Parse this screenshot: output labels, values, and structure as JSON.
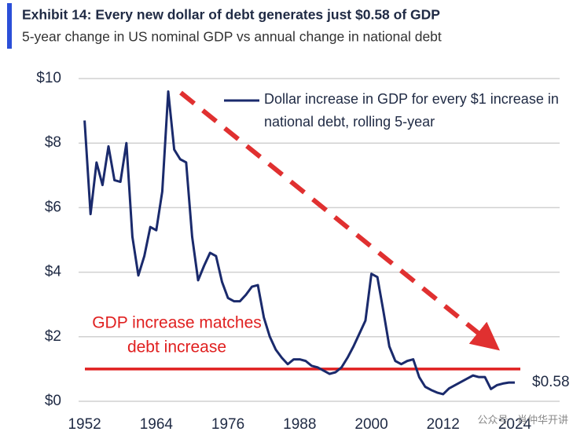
{
  "chart_data": {
    "type": "line",
    "title": "Exhibit 14: Every new dollar of debt generates just $0.58 of GDP",
    "subtitle": "5-year change in US nominal GDP vs annual change in national debt",
    "x": [
      1952,
      1953,
      1954,
      1955,
      1956,
      1957,
      1958,
      1959,
      1960,
      1961,
      1962,
      1963,
      1964,
      1965,
      1966,
      1967,
      1968,
      1969,
      1970,
      1971,
      1972,
      1973,
      1974,
      1975,
      1976,
      1977,
      1978,
      1979,
      1980,
      1981,
      1982,
      1983,
      1984,
      1985,
      1986,
      1987,
      1988,
      1989,
      1990,
      1991,
      1992,
      1993,
      1994,
      1995,
      1996,
      1997,
      1998,
      1999,
      2000,
      2001,
      2002,
      2003,
      2004,
      2005,
      2006,
      2007,
      2008,
      2009,
      2010,
      2011,
      2012,
      2013,
      2014,
      2015,
      2016,
      2017,
      2018,
      2019,
      2020,
      2021,
      2022,
      2023,
      2024
    ],
    "series": [
      {
        "name": "Dollar increase in GDP for every $1 increase in national debt, rolling 5-year",
        "color": "#1a2a6c",
        "values": [
          8.7,
          5.8,
          7.4,
          6.7,
          7.9,
          6.85,
          6.8,
          8.0,
          5.1,
          3.9,
          4.5,
          5.4,
          5.3,
          6.5,
          9.6,
          7.8,
          7.5,
          7.4,
          5.1,
          3.75,
          4.2,
          4.6,
          4.5,
          3.7,
          3.2,
          3.1,
          3.1,
          3.3,
          3.55,
          3.6,
          2.6,
          2.0,
          1.6,
          1.35,
          1.15,
          1.3,
          1.3,
          1.25,
          1.1,
          1.05,
          0.95,
          0.85,
          0.9,
          1.05,
          1.35,
          1.7,
          2.1,
          2.5,
          3.95,
          3.85,
          2.8,
          1.7,
          1.25,
          1.15,
          1.25,
          1.3,
          0.75,
          0.45,
          0.35,
          0.27,
          0.22,
          0.4,
          0.5,
          0.6,
          0.7,
          0.8,
          0.75,
          0.75,
          0.38,
          0.5,
          0.55,
          0.58,
          0.58
        ]
      }
    ],
    "end_label": {
      "value": 0.58,
      "label": "$0.58"
    },
    "reference_line": {
      "value": 1,
      "color": "#e02020",
      "label": [
        "GDP increase matches",
        "debt increase"
      ]
    },
    "xlim": [
      1951,
      2031.5
    ],
    "xticks": [
      1952,
      1964,
      1976,
      1988,
      2000,
      2012,
      2024
    ],
    "ylim": [
      0,
      10
    ],
    "yticks": [
      {
        "value": 0,
        "label": "$0"
      },
      {
        "value": 2,
        "label": "$2"
      },
      {
        "value": 4,
        "label": "$4"
      },
      {
        "value": 6,
        "label": "$6"
      },
      {
        "value": 8,
        "label": "$8"
      },
      {
        "value": 10,
        "label": "$10"
      }
    ],
    "grid": true,
    "watermark": "公众号 · 肖仲华开讲"
  }
}
